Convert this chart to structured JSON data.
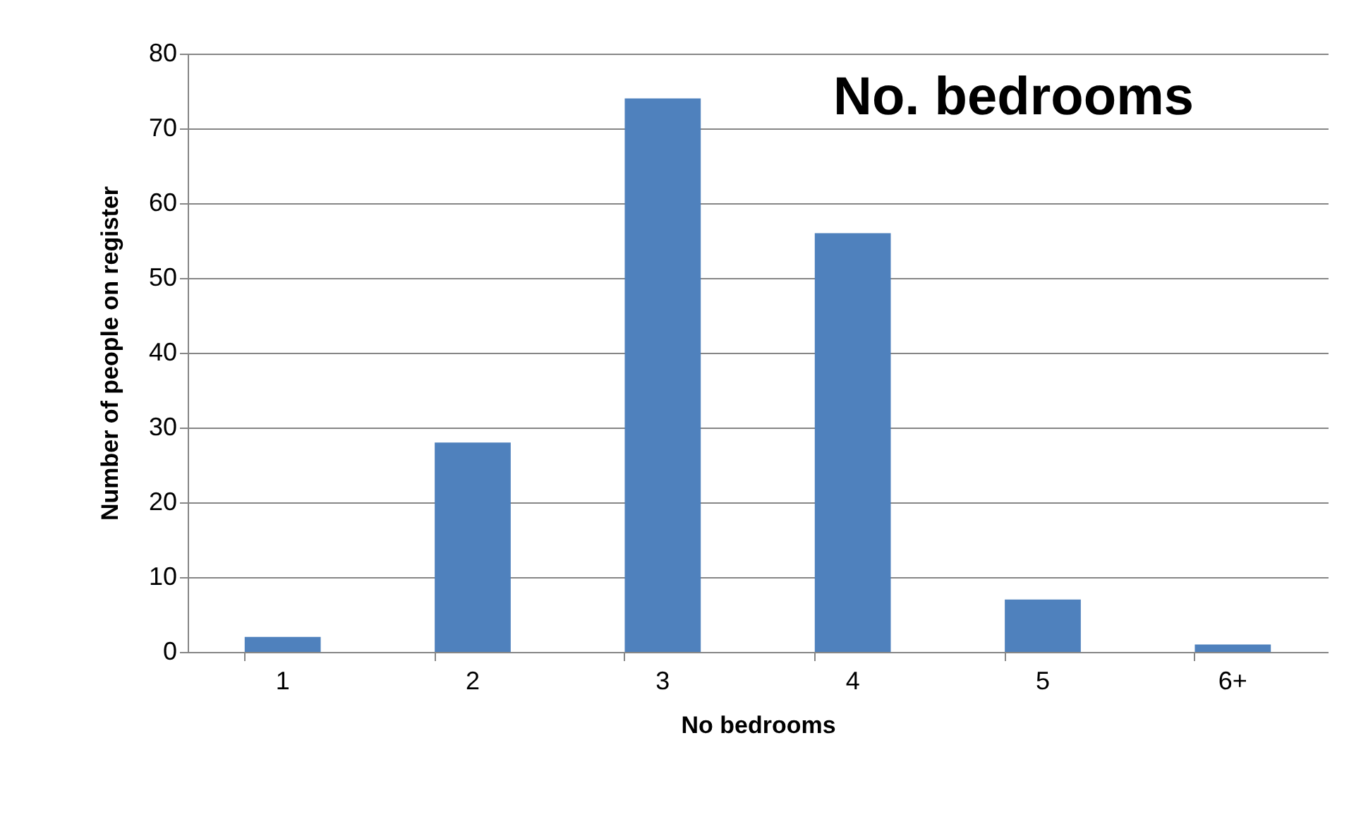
{
  "chart_data": {
    "type": "bar",
    "title": "No. bedrooms",
    "xlabel": "No bedrooms",
    "ylabel": "Number of people on register",
    "categories": [
      "1",
      "2",
      "3",
      "4",
      "5",
      "6+"
    ],
    "values": [
      2,
      28,
      74,
      56,
      7,
      1
    ],
    "color": "#4f81bd",
    "ylim": [
      0,
      80
    ],
    "yticks": [
      0,
      10,
      20,
      30,
      40,
      50,
      60,
      70,
      80
    ],
    "grid": "y"
  }
}
